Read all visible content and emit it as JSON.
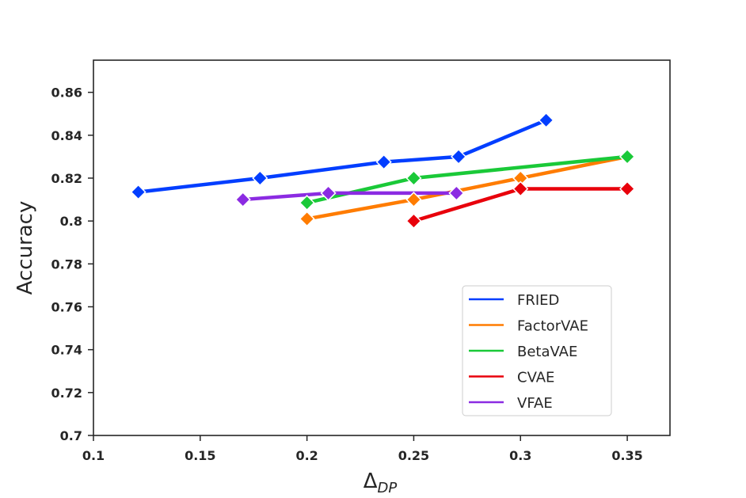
{
  "chart_data": {
    "type": "line",
    "title": "",
    "xlabel": "Δ",
    "xlabel_subscript": "DP",
    "ylabel": "Accuracy",
    "xlim": [
      0.1,
      0.37
    ],
    "ylim": [
      0.7,
      0.875
    ],
    "x_ticks": [
      0.1,
      0.15,
      0.2,
      0.25,
      0.3,
      0.35
    ],
    "x_tick_labels": [
      "0.1",
      "0.15",
      "0.2",
      "0.25",
      "0.3",
      "0.35"
    ],
    "y_ticks": [
      0.7,
      0.72,
      0.74,
      0.76,
      0.78,
      0.8,
      0.82,
      0.84,
      0.86
    ],
    "y_tick_labels": [
      "0.7",
      "0.72",
      "0.74",
      "0.76",
      "0.78",
      "0.8",
      "0.82",
      "0.84",
      "0.86"
    ],
    "grid": false,
    "legend_position": "bottom-right",
    "series": [
      {
        "name": "FRIED",
        "color": "#023eff",
        "x": [
          0.121,
          0.178,
          0.236,
          0.271,
          0.312
        ],
        "y": [
          0.8135,
          0.82,
          0.8275,
          0.83,
          0.847
        ]
      },
      {
        "name": "FactorVAE",
        "color": "#ff7c00",
        "x": [
          0.2,
          0.25,
          0.3,
          0.35
        ],
        "y": [
          0.801,
          0.81,
          0.82,
          0.83
        ]
      },
      {
        "name": "BetaVAE",
        "color": "#1ac938",
        "x": [
          0.2,
          0.25,
          0.35
        ],
        "y": [
          0.8085,
          0.82,
          0.83
        ]
      },
      {
        "name": "CVAE",
        "color": "#e8000b",
        "x": [
          0.25,
          0.3,
          0.35
        ],
        "y": [
          0.8,
          0.815,
          0.815
        ]
      },
      {
        "name": "VFAE",
        "color": "#8b2be2",
        "x": [
          0.17,
          0.21,
          0.27
        ],
        "y": [
          0.81,
          0.813,
          0.813
        ]
      }
    ]
  }
}
